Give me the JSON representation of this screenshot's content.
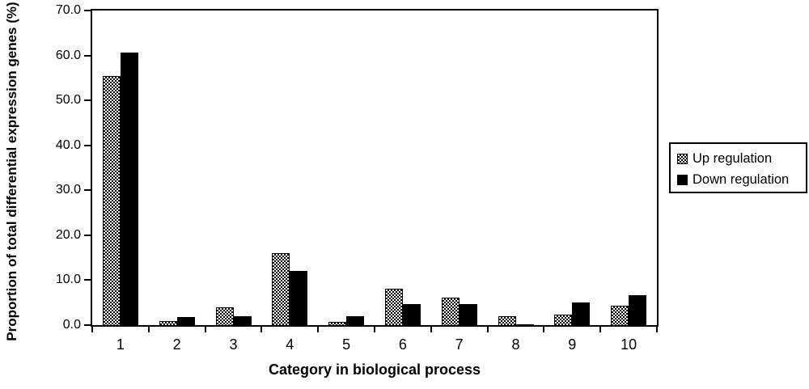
{
  "chart_data": {
    "type": "bar",
    "title": "",
    "xlabel": "Category in biological process",
    "ylabel": "Proportion of total differential expression genes (%)",
    "categories": [
      "1",
      "2",
      "3",
      "4",
      "5",
      "6",
      "7",
      "8",
      "9",
      "10"
    ],
    "series": [
      {
        "name": "Up regulation",
        "style": "hatched",
        "values": [
          55.4,
          0.9,
          3.9,
          16.0,
          0.8,
          8.1,
          6.1,
          1.9,
          2.3,
          4.4
        ]
      },
      {
        "name": "Down regulation",
        "style": "solid",
        "values": [
          60.7,
          1.8,
          2.0,
          12.1,
          2.0,
          4.6,
          4.7,
          0.2,
          5.0,
          6.7
        ]
      }
    ],
    "ylim": [
      0,
      70
    ],
    "y_tick_step": 10,
    "y_tick_labels": [
      "0.0",
      "10.0",
      "20.0",
      "30.0",
      "40.0",
      "50.0",
      "60.0",
      "70.0"
    ],
    "grid": false,
    "legend_position": "right",
    "colors": {
      "axis": "#000000",
      "bar_solid": "#000000",
      "bar_hatch_foreground": "#000000",
      "background": "#ffffff"
    }
  }
}
